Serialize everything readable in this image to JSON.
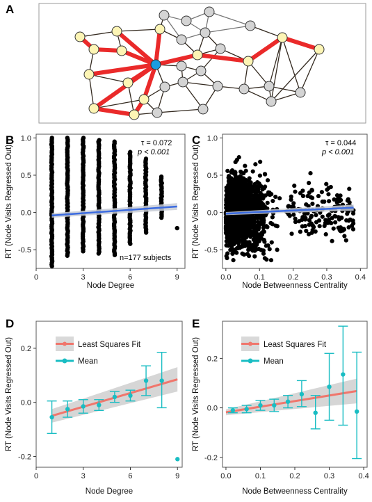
{
  "panel_labels": [
    "A",
    "B",
    "C",
    "D",
    "E"
  ],
  "network": {
    "colors": {
      "center": "#1a9de0",
      "highlight_node": "#fdf5b5",
      "other_node": "#d4d4d4",
      "highlight_edge": "#ea2a2a",
      "edge": "#33291f",
      "other_edge": "#777777"
    }
  },
  "chart_data": [
    {
      "id": "B",
      "type": "scatter",
      "xlabel": "Node Degree",
      "ylabel": "RT (Node Visits Regressed Out)",
      "xlim": [
        0,
        9.5
      ],
      "ylim": [
        -0.75,
        1.05
      ],
      "xticks": [
        0,
        3,
        6,
        9
      ],
      "yticks": [
        -0.5,
        0.0,
        0.5,
        1.0
      ],
      "yticklabels": [
        "-0.5",
        "0.0",
        "0.5",
        "1.0"
      ],
      "point_color": "#000000",
      "fit_color": "#3b6be0",
      "annotation": {
        "tau": "τ = 0.072",
        "p": "p < 0.001",
        "n": "n=177 subjects"
      },
      "columns": [
        {
          "x": 1,
          "ymin": -0.72,
          "ymax": 1.0
        },
        {
          "x": 2,
          "ymin": -0.58,
          "ymax": 1.0
        },
        {
          "x": 3,
          "ymin": -0.52,
          "ymax": 1.0
        },
        {
          "x": 4,
          "ymin": -0.55,
          "ymax": 0.97
        },
        {
          "x": 5,
          "ymin": -0.57,
          "ymax": 0.95
        },
        {
          "x": 6,
          "ymin": -0.42,
          "ymax": 0.81
        },
        {
          "x": 7,
          "ymin": -0.27,
          "ymax": 0.72
        },
        {
          "x": 8,
          "ymin": -0.07,
          "ymax": 0.48
        }
      ],
      "extra_points": [
        {
          "x": 9,
          "y": -0.21
        }
      ],
      "fit": {
        "x": [
          1,
          9
        ],
        "y": [
          -0.04,
          0.08
        ],
        "se": [
          0.03,
          0.045
        ]
      }
    },
    {
      "id": "C",
      "type": "scatter",
      "xlabel": "Node Betweenness Centrality",
      "ylabel": "RT (Node Visits Regressed Out)",
      "xlim": [
        -0.01,
        0.42
      ],
      "ylim": [
        -0.75,
        1.05
      ],
      "xticks": [
        0.0,
        0.1,
        0.2,
        0.3,
        0.4
      ],
      "xticklabels": [
        "0.0",
        "0.1",
        "0.2",
        "0.3",
        "0.4"
      ],
      "yticks": [
        -0.5,
        0.0,
        0.5,
        1.0
      ],
      "yticklabels": [
        "-0.5",
        "0.0",
        "0.5",
        "1.0"
      ],
      "point_color": "#000000",
      "fit_color": "#3b6be0",
      "annotation": {
        "tau": "τ = 0.044",
        "p": "p < 0.001"
      },
      "fit": {
        "x": [
          0.0,
          0.38
        ],
        "y": [
          -0.015,
          0.065
        ],
        "se": [
          0.02,
          0.04
        ]
      }
    },
    {
      "id": "D",
      "type": "line",
      "xlabel": "Node Degree",
      "ylabel": "RT (Node Visits Regressed Out)",
      "xlim": [
        0,
        9.3
      ],
      "ylim": [
        -0.24,
        0.3
      ],
      "xticks": [
        0,
        3,
        6,
        9
      ],
      "yticks": [
        -0.2,
        0.0,
        0.2
      ],
      "yticklabels": [
        "-0.2",
        "0.0",
        "0.2"
      ],
      "legend": {
        "position": "top-left",
        "entries": [
          "Least Squares Fit",
          "Mean"
        ]
      },
      "fit_color": "#f0766c",
      "mean_color": "#19bdc3",
      "fit": {
        "x": [
          1,
          9
        ],
        "y": [
          -0.05,
          0.085
        ],
        "se": [
          0.025,
          0.045
        ]
      },
      "means": [
        {
          "x": 1,
          "y": -0.055,
          "lo": -0.115,
          "hi": 0.005
        },
        {
          "x": 2,
          "y": -0.025,
          "lo": -0.055,
          "hi": 0.005
        },
        {
          "x": 3,
          "y": -0.015,
          "lo": -0.04,
          "hi": 0.01
        },
        {
          "x": 4,
          "y": -0.01,
          "lo": -0.03,
          "hi": 0.01
        },
        {
          "x": 5,
          "y": 0.02,
          "lo": 0.0,
          "hi": 0.04
        },
        {
          "x": 6,
          "y": 0.025,
          "lo": 0.005,
          "hi": 0.045
        },
        {
          "x": 7,
          "y": 0.08,
          "lo": 0.025,
          "hi": 0.135
        },
        {
          "x": 8,
          "y": 0.08,
          "lo": -0.02,
          "hi": 0.185
        }
      ],
      "outlier": {
        "x": 9,
        "y": -0.21
      }
    },
    {
      "id": "E",
      "type": "line",
      "xlabel": "Node Betweenness Centrality",
      "ylabel": "RT (Node Visits Regressed Out)",
      "xlim": [
        -0.01,
        0.41
      ],
      "ylim": [
        -0.24,
        0.35
      ],
      "xticks": [
        0.0,
        0.1,
        0.2,
        0.3,
        0.4
      ],
      "xticklabels": [
        "0.0",
        "0.1",
        "0.2",
        "0.3",
        "0.4"
      ],
      "yticks": [
        -0.2,
        0.0,
        0.2
      ],
      "yticklabels": [
        "-0.2",
        "0.0",
        "0.2"
      ],
      "legend": {
        "position": "top-left",
        "entries": [
          "Least Squares Fit",
          "Mean"
        ]
      },
      "fit_color": "#f0766c",
      "mean_color": "#19bdc3",
      "fit": {
        "x": [
          0.0,
          0.38
        ],
        "y": [
          -0.018,
          0.068
        ],
        "se": [
          0.012,
          0.05
        ]
      },
      "means": [
        {
          "x": 0.02,
          "y": -0.01,
          "lo": -0.02,
          "hi": 0.0
        },
        {
          "x": 0.06,
          "y": -0.005,
          "lo": -0.02,
          "hi": 0.01
        },
        {
          "x": 0.1,
          "y": 0.01,
          "lo": -0.01,
          "hi": 0.03
        },
        {
          "x": 0.14,
          "y": 0.01,
          "lo": -0.015,
          "hi": 0.035
        },
        {
          "x": 0.18,
          "y": 0.025,
          "lo": 0.0,
          "hi": 0.05
        },
        {
          "x": 0.22,
          "y": 0.055,
          "lo": 0.005,
          "hi": 0.11
        },
        {
          "x": 0.26,
          "y": -0.02,
          "lo": -0.085,
          "hi": 0.05
        },
        {
          "x": 0.3,
          "y": 0.085,
          "lo": -0.05,
          "hi": 0.22
        },
        {
          "x": 0.34,
          "y": 0.135,
          "lo": -0.07,
          "hi": 0.33
        },
        {
          "x": 0.38,
          "y": -0.015,
          "lo": -0.205,
          "hi": 0.225
        }
      ]
    }
  ]
}
